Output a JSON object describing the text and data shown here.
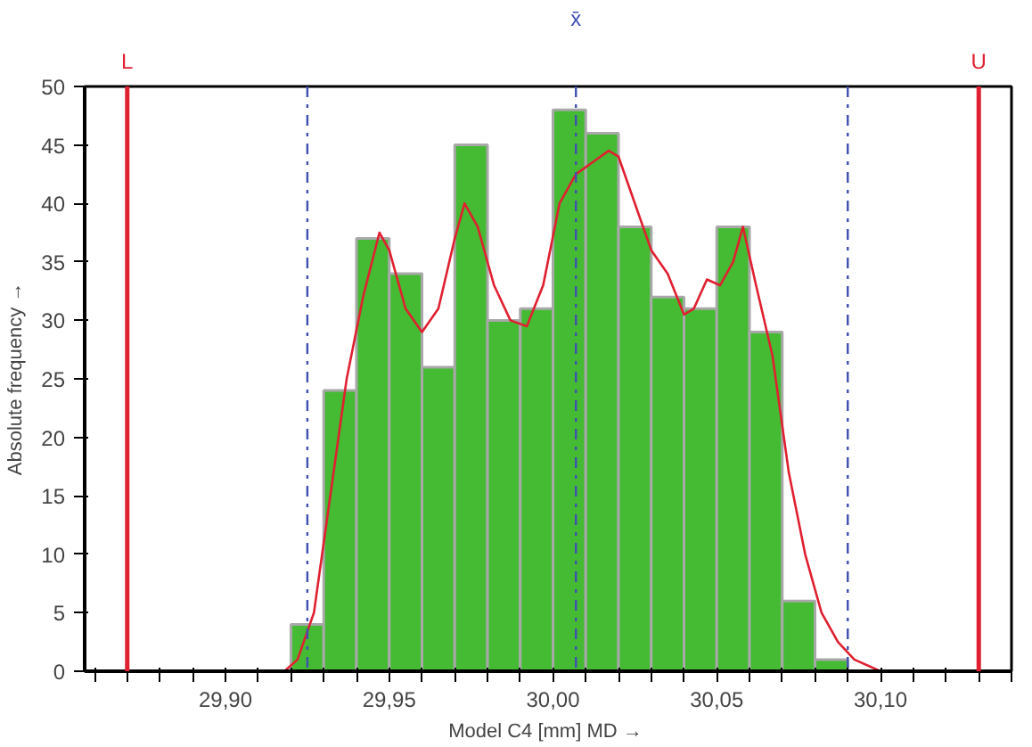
{
  "chart_data": {
    "type": "histogram",
    "xlabel": "Model C4 [mm]  MD →",
    "ylabel": "Absolute frequency →",
    "bins": [
      29.92,
      29.93,
      29.94,
      29.95,
      29.96,
      29.97,
      29.98,
      29.99,
      30.0,
      30.01,
      30.02,
      30.03,
      30.04,
      30.05,
      30.06,
      30.07,
      30.08,
      30.09
    ],
    "values": [
      4,
      24,
      37,
      34,
      26,
      45,
      30,
      31,
      48,
      46,
      38,
      32,
      31,
      38,
      29,
      6,
      1
    ],
    "color": "#44bb33",
    "series": [
      {
        "type": "line",
        "color": "#e02030",
        "x": [
          29.857,
          29.918,
          29.922,
          29.927,
          29.932,
          29.937,
          29.942,
          29.947,
          29.95,
          29.955,
          29.96,
          29.965,
          29.97,
          29.973,
          29.977,
          29.982,
          29.987,
          29.992,
          29.997,
          30.002,
          30.007,
          30.012,
          30.017,
          30.02,
          30.025,
          30.03,
          30.035,
          30.04,
          30.043,
          30.047,
          30.051,
          30.055,
          30.058,
          30.062,
          30.067,
          30.072,
          30.077,
          30.082,
          30.087,
          30.092,
          30.1,
          30.14
        ],
        "values": [
          0,
          0,
          1,
          5,
          15,
          25,
          32,
          37.5,
          36,
          31,
          29,
          31,
          37,
          40,
          38,
          33,
          30,
          29.5,
          33,
          40,
          42.5,
          43.5,
          44.5,
          44,
          40,
          36,
          34,
          30.5,
          31,
          33.5,
          33,
          35,
          38,
          33,
          27,
          17,
          10,
          5,
          2.5,
          1,
          0,
          0
        ]
      }
    ],
    "ref_lines": [
      {
        "axis": "x",
        "value": 29.87,
        "label": "L",
        "color": "#e02030",
        "line_style": "solid"
      },
      {
        "axis": "x",
        "value": 29.925,
        "label": null,
        "color": "#4050b0",
        "line_style": "dashdot"
      },
      {
        "axis": "x",
        "value": 30.007,
        "label": "x̄",
        "color": "#4050b0",
        "line_style": "dashdot"
      },
      {
        "axis": "x",
        "value": 30.09,
        "label": null,
        "color": "#4050b0",
        "line_style": "dashdot"
      },
      {
        "axis": "x",
        "value": 30.13,
        "label": "U",
        "color": "#e02030",
        "line_style": "solid"
      }
    ],
    "xlim": [
      29.857,
      30.14
    ],
    "ylim": [
      0,
      50
    ],
    "xticks": [
      {
        "value": 29.86,
        "label": null
      },
      {
        "value": 29.87,
        "label": null
      },
      {
        "value": 29.88,
        "label": null
      },
      {
        "value": 29.89,
        "label": null
      },
      {
        "value": 29.9,
        "label": "29,90"
      },
      {
        "value": 29.91,
        "label": null
      },
      {
        "value": 29.92,
        "label": null
      },
      {
        "value": 29.93,
        "label": null
      },
      {
        "value": 29.94,
        "label": null
      },
      {
        "value": 29.95,
        "label": "29,95"
      },
      {
        "value": 29.96,
        "label": null
      },
      {
        "value": 29.97,
        "label": null
      },
      {
        "value": 29.98,
        "label": null
      },
      {
        "value": 29.99,
        "label": null
      },
      {
        "value": 30.0,
        "label": "30,00"
      },
      {
        "value": 30.01,
        "label": null
      },
      {
        "value": 30.02,
        "label": null
      },
      {
        "value": 30.03,
        "label": null
      },
      {
        "value": 30.04,
        "label": null
      },
      {
        "value": 30.05,
        "label": "30,05"
      },
      {
        "value": 30.06,
        "label": null
      },
      {
        "value": 30.07,
        "label": null
      },
      {
        "value": 30.08,
        "label": null
      },
      {
        "value": 30.09,
        "label": null
      },
      {
        "value": 30.1,
        "label": "30,10"
      },
      {
        "value": 30.11,
        "label": null
      },
      {
        "value": 30.12,
        "label": null
      },
      {
        "value": 30.13,
        "label": null
      },
      {
        "value": 30.14,
        "label": null
      }
    ],
    "yticks": [
      0,
      5,
      10,
      15,
      20,
      25,
      30,
      35,
      40,
      45,
      50
    ],
    "grid": false
  }
}
